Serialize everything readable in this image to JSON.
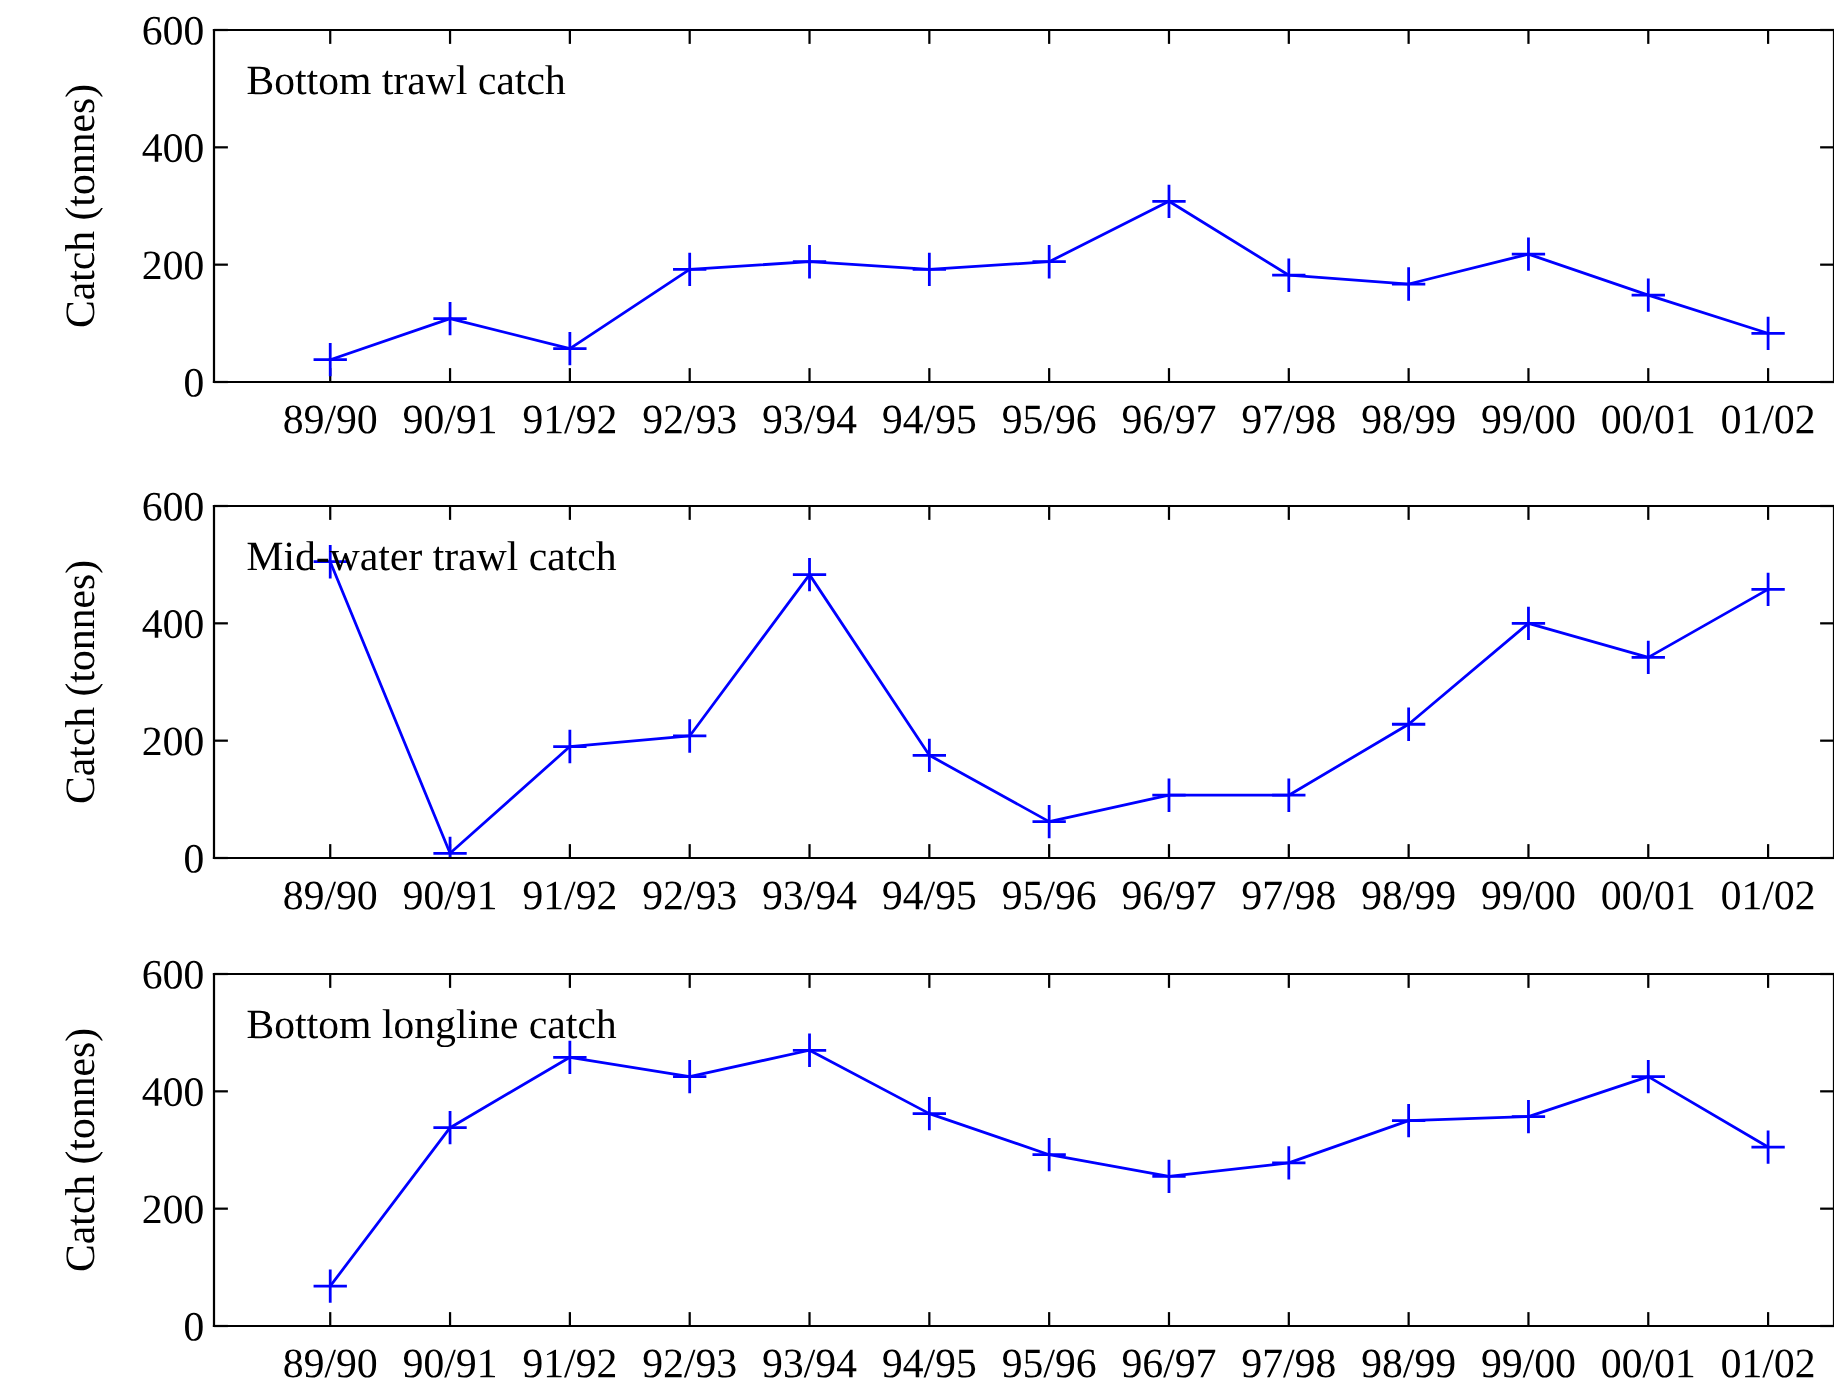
{
  "chart_data": [
    {
      "type": "line",
      "title": "Bottom trawl catch",
      "ylabel": "Catch (tonnes)",
      "categories": [
        "89/90",
        "90/91",
        "91/92",
        "92/93",
        "93/94",
        "94/95",
        "95/96",
        "96/97",
        "97/98",
        "98/99",
        "99/00",
        "00/01",
        "01/02"
      ],
      "series": [
        {
          "color": "#0000ff",
          "values": [
            38,
            108,
            57,
            192,
            205,
            192,
            205,
            308,
            182,
            167,
            218,
            148,
            83
          ]
        }
      ],
      "ylim": [
        0,
        600
      ],
      "yticks": [
        0,
        200,
        400,
        600
      ],
      "marker": "cross",
      "line_style": "solid",
      "grid": false,
      "legend": false
    },
    {
      "type": "line",
      "title": "Mid-water trawl catch",
      "ylabel": "Catch (tonnes)",
      "categories": [
        "89/90",
        "90/91",
        "91/92",
        "92/93",
        "93/94",
        "94/95",
        "95/96",
        "96/97",
        "97/98",
        "98/99",
        "99/00",
        "00/01",
        "01/02"
      ],
      "series": [
        {
          "color": "#0000ff",
          "values": [
            505,
            8,
            190,
            208,
            483,
            175,
            62,
            107,
            107,
            228,
            400,
            342,
            458
          ]
        }
      ],
      "ylim": [
        0,
        600
      ],
      "yticks": [
        0,
        200,
        400,
        600
      ],
      "marker": "cross",
      "line_style": "solid",
      "grid": false,
      "legend": false
    },
    {
      "type": "line",
      "title": "Bottom longline catch",
      "ylabel": "Catch (tonnes)",
      "categories": [
        "89/90",
        "90/91",
        "91/92",
        "92/93",
        "93/94",
        "94/95",
        "95/96",
        "96/97",
        "97/98",
        "98/99",
        "99/00",
        "00/01",
        "01/02"
      ],
      "series": [
        {
          "color": "#0000ff",
          "values": [
            68,
            338,
            458,
            425,
            470,
            362,
            292,
            255,
            278,
            350,
            357,
            425,
            305
          ]
        }
      ],
      "ylim": [
        0,
        600
      ],
      "yticks": [
        0,
        200,
        400,
        600
      ],
      "marker": "cross",
      "line_style": "solid",
      "grid": false,
      "legend": false
    }
  ]
}
